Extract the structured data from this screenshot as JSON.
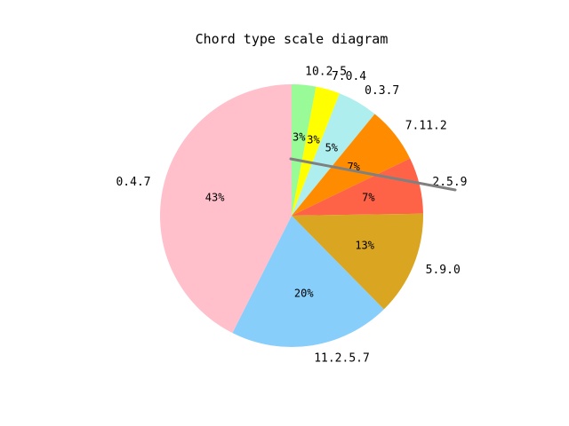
{
  "chart_data": {
    "type": "pie",
    "title": "Chord type scale diagram",
    "start_angle_deg": 90,
    "direction": "clockwise",
    "slices": [
      {
        "label": "10.2.5",
        "value": 3,
        "pct_label": "3%",
        "color": "#98fb98"
      },
      {
        "label": "7.0.4",
        "value": 3,
        "pct_label": "3%",
        "color": "#ffff00"
      },
      {
        "label": "0.3.7",
        "value": 5,
        "pct_label": "5%",
        "color": "#afeeee"
      },
      {
        "label": "7.11.2",
        "value": 7,
        "pct_label": "7%",
        "color": "#ff8c00"
      },
      {
        "label": "2.5.9",
        "value": 7,
        "pct_label": "7%",
        "color": "#ff6347"
      },
      {
        "label": "5.9.0",
        "value": 13,
        "pct_label": "13%",
        "color": "#daa520"
      },
      {
        "label": "11.2.5.7",
        "value": 20,
        "pct_label": "20%",
        "color": "#87cefa"
      },
      {
        "label": "0.4.7",
        "value": 43,
        "pct_label": "43%",
        "color": "#ffc0cb"
      }
    ],
    "annotation_line_color": "#808080"
  }
}
